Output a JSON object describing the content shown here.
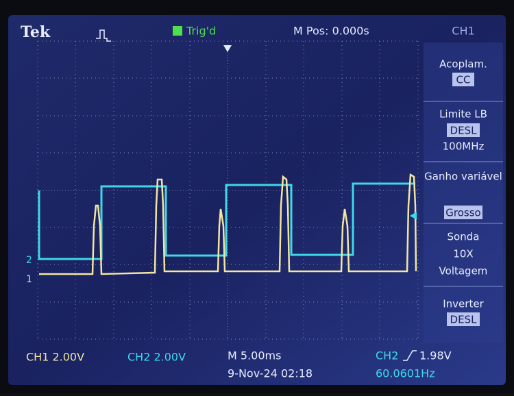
{
  "header": {
    "brand": "Tek",
    "trigger": "Trig'd",
    "position": "M Pos: 0.000s",
    "channel": "CH1"
  },
  "menu": [
    {
      "label": "Acoplam.",
      "option": "CC"
    },
    {
      "label": "Limite LB",
      "option": "DESL",
      "detail": "100MHz"
    },
    {
      "label": "Ganho variável",
      "option": "Grosso"
    },
    {
      "label": "Sonda",
      "detail": "10X",
      "extra": "Voltagem"
    },
    {
      "label": "Inverter",
      "option": "DESL"
    }
  ],
  "markers": {
    "ch2": "2",
    "ch1": "1"
  },
  "footer": {
    "ch1_scale": "CH1 2.00V",
    "ch2_scale": "CH2 2.00V",
    "timebase": "M 5.00ms",
    "datetime": "9-Nov-24 02:18",
    "trigger_source": "CH2",
    "trigger_level": "1.98V",
    "frequency": "60.0601Hz"
  }
}
